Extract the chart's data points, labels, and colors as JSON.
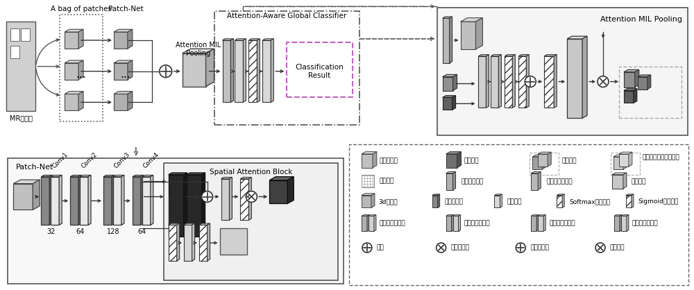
{
  "bg_color": "#ffffff",
  "fig_width": 10.0,
  "fig_height": 4.18,
  "top_section": {
    "bag_label": "A bag of patches",
    "patchnet_label": "Patch-Net",
    "attention_mil_label": "Attention MIL\nPooling",
    "global_classifier_label": "Attention-Aware Global Classifier",
    "attention_mil_pooling_label": "Attention MIL Pooling",
    "classification_result_label": "Classification\nResult",
    "mr_label": "MR脑影像"
  },
  "bottom_left": {
    "patchnet_label": "Patch-Net",
    "spatial_label": "Spatial Attention Block",
    "conv_labels": [
      "Conv1",
      "Conv2",
      "Conv3",
      "Conv4"
    ],
    "channel_labels": [
      "32",
      "64",
      "128",
      "64"
    ]
  },
  "legend_rows": [
    [
      "原始图像块",
      "块级特征",
      "全局特征",
      "注意力激活的全局特征"
    ],
    [
      "影响分数",
      "影响分数向量",
      "注意力权重向量",
      "维度扩展"
    ],
    [
      "3d卷积层",
      "最大池化层",
      "全连接层",
      "Softmax激活函数",
      "Sigmoid激活函数"
    ],
    [
      "全局最大池化层",
      "全局平均池化层",
      "通道最大池化层",
      "通道平均池化层"
    ],
    [
      "连接",
      "元素级乘法",
      "元素级加法",
      "张量乘法"
    ]
  ]
}
